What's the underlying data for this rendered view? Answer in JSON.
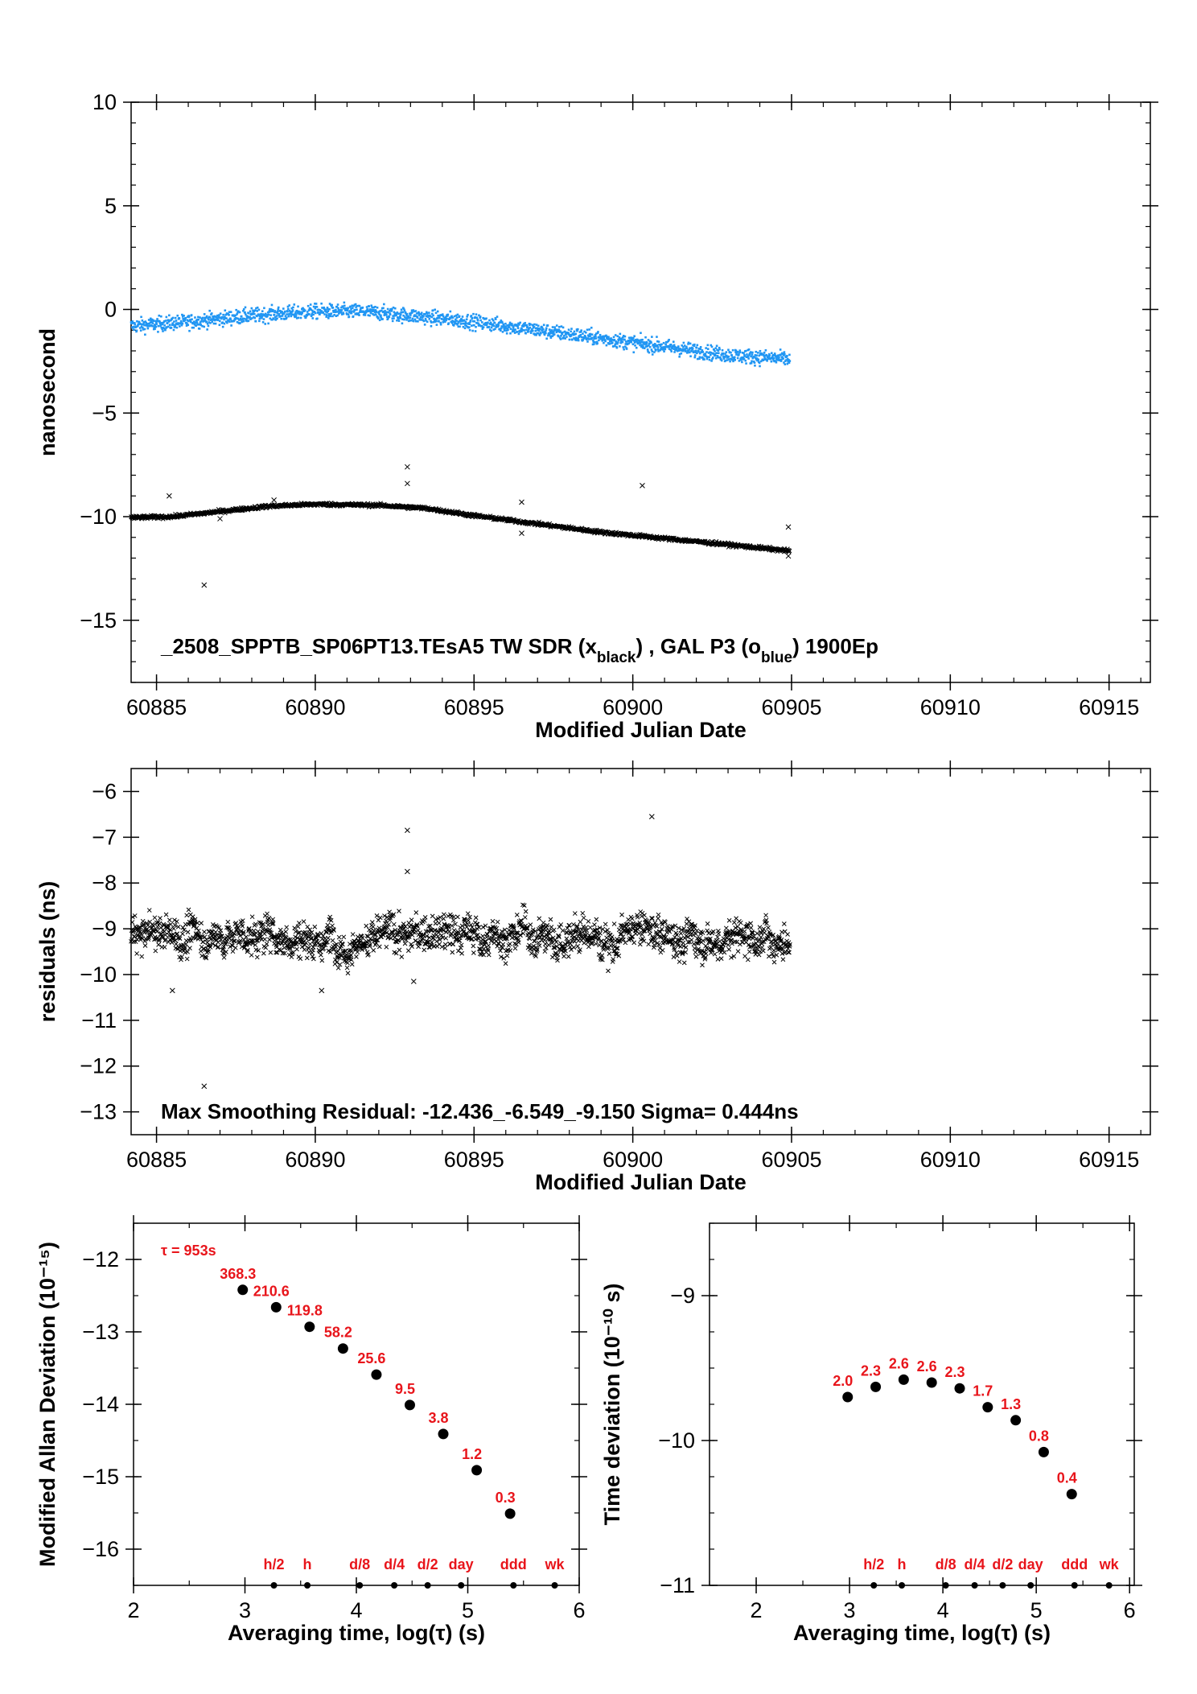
{
  "colors": {
    "blue_series": "#2196f3",
    "black_series": "#000000",
    "label_red": "#e8151b",
    "frame": "#000000"
  },
  "chart_data": [
    {
      "type": "scatter",
      "xlabel": "Modified Julian Date",
      "ylabel": "nanosecond",
      "xlim": [
        60884.2,
        60916.3
      ],
      "ylim": [
        -18,
        10
      ],
      "xticks": [
        60885,
        60890,
        60895,
        60900,
        60905,
        60910,
        60915
      ],
      "yticks": [
        10,
        5,
        0,
        -5,
        -10,
        -15
      ],
      "annotation": {
        "title_main": "_2508_SPPTB_SP06PT13.TEsA5     TW SDR (x",
        "title_sub1": "black",
        "title_mid": ") ,  GAL P3 (o",
        "title_sub2": "blue",
        "title_end": ")  1900Ep"
      },
      "series": [
        {
          "name": "TW SDR",
          "marker": "x",
          "color": "#000000",
          "trend": [
            [
              60884.2,
              -10.05
            ],
            [
              60885.5,
              -10.0
            ],
            [
              60887.0,
              -9.75
            ],
            [
              60888.5,
              -9.5
            ],
            [
              60890.0,
              -9.4
            ],
            [
              60892.0,
              -9.45
            ],
            [
              60893.5,
              -9.6
            ],
            [
              60895.0,
              -9.95
            ],
            [
              60897.0,
              -10.35
            ],
            [
              60899.0,
              -10.75
            ],
            [
              60901.0,
              -11.05
            ],
            [
              60903.0,
              -11.35
            ],
            [
              60904.9,
              -11.65
            ]
          ],
          "noise": 0.08,
          "outliers": [
            [
              60885.4,
              -9.0
            ],
            [
              60886.5,
              -13.3
            ],
            [
              60887.0,
              -10.1
            ],
            [
              60888.7,
              -9.2
            ],
            [
              60892.9,
              -7.6
            ],
            [
              60892.9,
              -8.4
            ],
            [
              60896.5,
              -9.3
            ],
            [
              60896.5,
              -10.8
            ],
            [
              60900.3,
              -8.5
            ],
            [
              60904.9,
              -10.5
            ],
            [
              60904.9,
              -11.9
            ]
          ]
        },
        {
          "name": "GAL P3",
          "marker": "o",
          "color": "#2196f3",
          "trend": [
            [
              60884.2,
              -0.8
            ],
            [
              60886.0,
              -0.6
            ],
            [
              60888.0,
              -0.3
            ],
            [
              60890.0,
              -0.1
            ],
            [
              60891.5,
              -0.1
            ],
            [
              60893.0,
              -0.3
            ],
            [
              60895.0,
              -0.6
            ],
            [
              60897.0,
              -1.0
            ],
            [
              60899.0,
              -1.4
            ],
            [
              60901.0,
              -1.8
            ],
            [
              60903.0,
              -2.2
            ],
            [
              60904.9,
              -2.4
            ]
          ],
          "noise": 0.35
        }
      ]
    },
    {
      "type": "scatter",
      "xlabel": "Modified Julian Date",
      "ylabel": "residuals (ns)",
      "xlim": [
        60884.2,
        60916.3
      ],
      "ylim": [
        -13.5,
        -5.5
      ],
      "xticks": [
        60885,
        60890,
        60895,
        60900,
        60905,
        60910,
        60915
      ],
      "yticks": [
        -6,
        -7,
        -8,
        -9,
        -10,
        -11,
        -12,
        -13
      ],
      "annotation": "Max Smoothing Residual: -12.436_-6.549_-9.150  Sigma= 0.444ns",
      "series": [
        {
          "name": "residuals",
          "marker": "x",
          "color": "#000000",
          "center": -9.15,
          "xrange": [
            60884.2,
            60904.95
          ],
          "spread": 0.444,
          "outliers": [
            [
              60886.5,
              -12.44
            ],
            [
              60900.6,
              -6.55
            ],
            [
              60892.9,
              -6.85
            ],
            [
              60892.9,
              -7.75
            ],
            [
              60885.5,
              -10.35
            ],
            [
              60890.2,
              -10.35
            ],
            [
              60893.1,
              -10.15
            ]
          ]
        }
      ]
    },
    {
      "type": "scatter",
      "xlabel": "Averaging time, log(τ) (s)",
      "ylabel": "Modified Allan Deviation (10⁻¹⁵)",
      "xlim": [
        2,
        6
      ],
      "ylim": [
        -16.5,
        -11.5
      ],
      "xticks": [
        2,
        3,
        4,
        5,
        6
      ],
      "yticks": [
        -12,
        -13,
        -14,
        -15,
        -16
      ],
      "tau_label": "τ = 953s",
      "points": [
        {
          "x": 2.98,
          "y": -12.42,
          "label": "368.3"
        },
        {
          "x": 3.28,
          "y": -12.66,
          "label": "210.6"
        },
        {
          "x": 3.58,
          "y": -12.93,
          "label": "119.8"
        },
        {
          "x": 3.88,
          "y": -13.23,
          "label": "58.2"
        },
        {
          "x": 4.18,
          "y": -13.59,
          "label": "25.6"
        },
        {
          "x": 4.48,
          "y": -14.01,
          "label": "9.5"
        },
        {
          "x": 4.78,
          "y": -14.41,
          "label": "3.8"
        },
        {
          "x": 5.08,
          "y": -14.91,
          "label": "1.2"
        },
        {
          "x": 5.38,
          "y": -15.51,
          "label": "0.3"
        }
      ],
      "markers": [
        {
          "x": 3.26,
          "label": "h/2"
        },
        {
          "x": 3.56,
          "label": "h"
        },
        {
          "x": 4.03,
          "label": "d/8"
        },
        {
          "x": 4.34,
          "label": "d/4"
        },
        {
          "x": 4.64,
          "label": "d/2"
        },
        {
          "x": 4.94,
          "label": "day"
        },
        {
          "x": 5.41,
          "label": "ddd"
        },
        {
          "x": 5.78,
          "label": "wk"
        }
      ]
    },
    {
      "type": "scatter",
      "xlabel": "Averaging time, log(τ) (s)",
      "ylabel": "Time deviation (10⁻¹⁰ s)",
      "xlim": [
        1.5,
        6.05
      ],
      "ylim": [
        -11,
        -8.5
      ],
      "xticks": [
        2,
        3,
        4,
        5,
        6
      ],
      "yticks": [
        -9,
        -10,
        -11
      ],
      "points": [
        {
          "x": 2.98,
          "y": -9.7,
          "label": "2.0"
        },
        {
          "x": 3.28,
          "y": -9.63,
          "label": "2.3"
        },
        {
          "x": 3.58,
          "y": -9.58,
          "label": "2.6"
        },
        {
          "x": 3.88,
          "y": -9.6,
          "label": "2.6"
        },
        {
          "x": 4.18,
          "y": -9.64,
          "label": "2.3"
        },
        {
          "x": 4.48,
          "y": -9.77,
          "label": "1.7"
        },
        {
          "x": 4.78,
          "y": -9.86,
          "label": "1.3"
        },
        {
          "x": 5.08,
          "y": -10.08,
          "label": "0.8"
        },
        {
          "x": 5.38,
          "y": -10.37,
          "label": "0.4"
        }
      ],
      "markers": [
        {
          "x": 3.26,
          "label": "h/2"
        },
        {
          "x": 3.56,
          "label": "h"
        },
        {
          "x": 4.03,
          "label": "d/8"
        },
        {
          "x": 4.34,
          "label": "d/4"
        },
        {
          "x": 4.64,
          "label": "d/2"
        },
        {
          "x": 4.94,
          "label": "day"
        },
        {
          "x": 5.41,
          "label": "ddd"
        },
        {
          "x": 5.78,
          "label": "wk"
        }
      ]
    }
  ]
}
